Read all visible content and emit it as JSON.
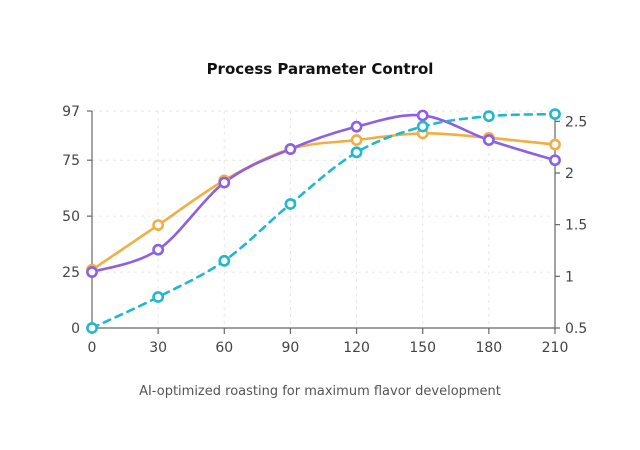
{
  "chart_data": {
    "type": "line",
    "title": "Process Parameter Control",
    "subtitle": "AI-optimized roasting for maximum flavor development",
    "x": [
      0,
      30,
      60,
      90,
      120,
      150,
      180,
      210
    ],
    "xlim": [
      0,
      210
    ],
    "ylim_left": [
      0,
      97
    ],
    "yticks_left": [
      0,
      25,
      50,
      75,
      97
    ],
    "ylim_right": [
      0.5,
      2.6
    ],
    "yticks_right": [
      0.5,
      1,
      1.5,
      2,
      2.5
    ],
    "grid": true,
    "legend": "none",
    "series": [
      {
        "color": "#f2ae42",
        "axis": "left",
        "dashed": false,
        "values": [
          26,
          46,
          66,
          80,
          84,
          87,
          85,
          82
        ]
      },
      {
        "color": "#8b5fe6",
        "axis": "left",
        "dashed": false,
        "values": [
          25,
          35,
          65,
          80,
          90,
          95,
          84,
          75
        ]
      },
      {
        "color": "#1fb8cc",
        "axis": "right",
        "dashed": true,
        "values": [
          0.5,
          0.8,
          1.15,
          1.7,
          2.2,
          2.45,
          2.55,
          2.57
        ]
      }
    ]
  }
}
